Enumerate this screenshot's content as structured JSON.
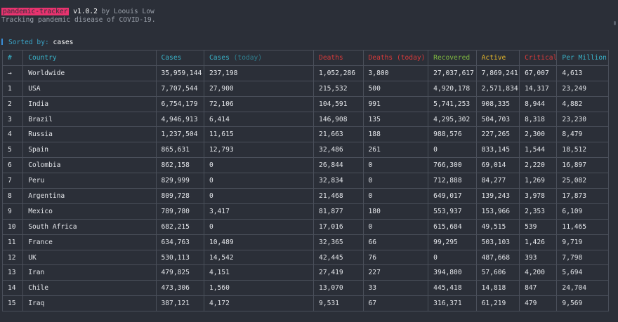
{
  "header": {
    "app_name": "pandemic-tracker",
    "version": "v1.0.2",
    "author_prefix": "by",
    "author": "Loouis Low",
    "tagline": "Tracking pandemic disease of COVID-19."
  },
  "sort": {
    "label": "Sorted by:",
    "value": "cases"
  },
  "colors": {
    "background": "#2b2f38",
    "accent_pink": "#e8336f",
    "header_cyan": "#39b3c9",
    "header_red": "#d83a3a",
    "header_green": "#7fb940",
    "header_yellow": "#e5b72a"
  },
  "table": {
    "headers": {
      "idx": "#",
      "country": "Country",
      "cases": "Cases",
      "cases_today_main": "Cases",
      "cases_today_sub": "(today)",
      "deaths": "Deaths",
      "deaths_today": "Deaths (today)",
      "recovered": "Recovered",
      "active": "Active",
      "critical": "Critical",
      "per_million": "Per Million"
    },
    "rows": [
      [
        "→",
        "Worldwide",
        "35,959,144",
        "237,198",
        "1,052,286",
        "3,800",
        "27,037,617",
        "7,869,241",
        "67,007",
        "4,613"
      ],
      [
        "1",
        "USA",
        "7,707,544",
        "27,900",
        "215,532",
        "500",
        "4,920,178",
        "2,571,834",
        "14,317",
        "23,249"
      ],
      [
        "2",
        "India",
        "6,754,179",
        "72,106",
        "104,591",
        "991",
        "5,741,253",
        "908,335",
        "8,944",
        "4,882"
      ],
      [
        "3",
        "Brazil",
        "4,946,913",
        "6,414",
        "146,908",
        "135",
        "4,295,302",
        "504,703",
        "8,318",
        "23,230"
      ],
      [
        "4",
        "Russia",
        "1,237,504",
        "11,615",
        "21,663",
        "188",
        "988,576",
        "227,265",
        "2,300",
        "8,479"
      ],
      [
        "5",
        "Spain",
        "865,631",
        "12,793",
        "32,486",
        "261",
        "0",
        "833,145",
        "1,544",
        "18,512"
      ],
      [
        "6",
        "Colombia",
        "862,158",
        "0",
        "26,844",
        "0",
        "766,300",
        "69,014",
        "2,220",
        "16,897"
      ],
      [
        "7",
        "Peru",
        "829,999",
        "0",
        "32,834",
        "0",
        "712,888",
        "84,277",
        "1,269",
        "25,082"
      ],
      [
        "8",
        "Argentina",
        "809,728",
        "0",
        "21,468",
        "0",
        "649,017",
        "139,243",
        "3,978",
        "17,873"
      ],
      [
        "9",
        "Mexico",
        "789,780",
        "3,417",
        "81,877",
        "180",
        "553,937",
        "153,966",
        "2,353",
        "6,109"
      ],
      [
        "10",
        "South Africa",
        "682,215",
        "0",
        "17,016",
        "0",
        "615,684",
        "49,515",
        "539",
        "11,465"
      ],
      [
        "11",
        "France",
        "634,763",
        "10,489",
        "32,365",
        "66",
        "99,295",
        "503,103",
        "1,426",
        "9,719"
      ],
      [
        "12",
        "UK",
        "530,113",
        "14,542",
        "42,445",
        "76",
        "0",
        "487,668",
        "393",
        "7,798"
      ],
      [
        "13",
        "Iran",
        "479,825",
        "4,151",
        "27,419",
        "227",
        "394,800",
        "57,606",
        "4,200",
        "5,694"
      ],
      [
        "14",
        "Chile",
        "473,306",
        "1,560",
        "13,070",
        "33",
        "445,418",
        "14,818",
        "847",
        "24,704"
      ],
      [
        "15",
        "Iraq",
        "387,121",
        "4,172",
        "9,531",
        "67",
        "316,371",
        "61,219",
        "479",
        "9,569"
      ]
    ]
  }
}
